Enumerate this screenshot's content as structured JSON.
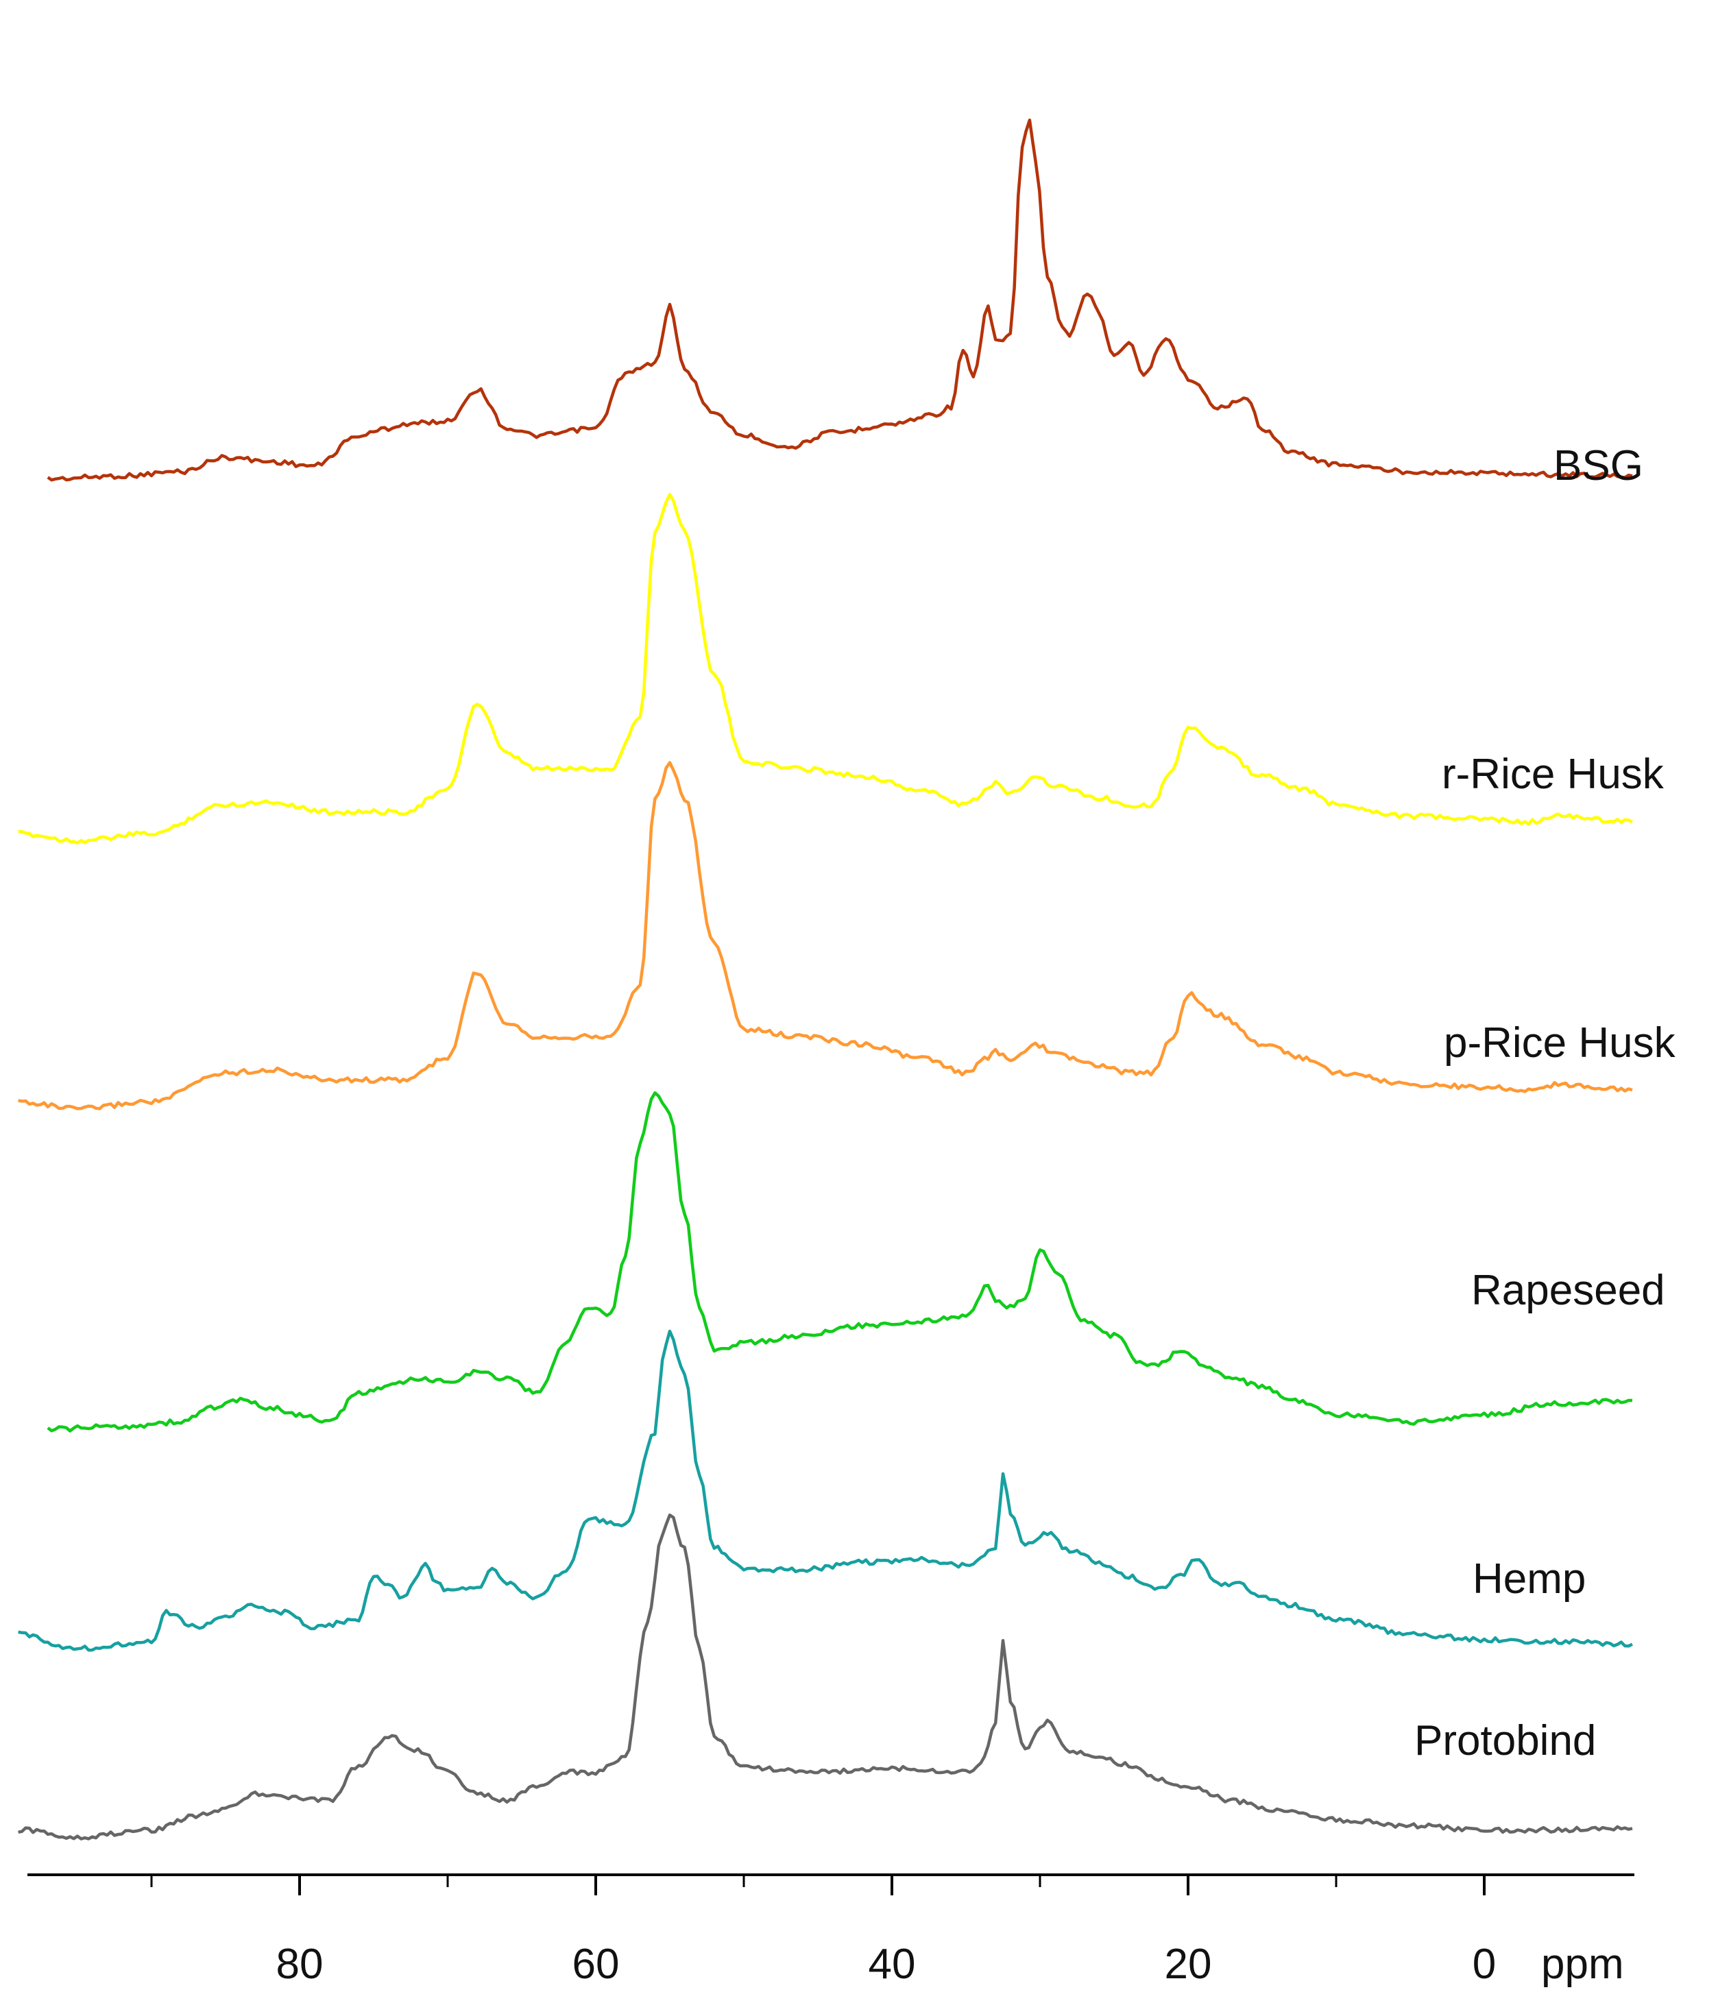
{
  "chart_data": {
    "type": "line",
    "title": "",
    "xlabel": "ppm",
    "ylabel": "",
    "x_reversed": true,
    "xlim": [
      99,
      -10
    ],
    "x_ticks": [
      80,
      60,
      40,
      20,
      0
    ],
    "x_tick_labels": [
      "80",
      "60",
      "40",
      "20",
      "0"
    ],
    "minor_ticks": [
      90,
      70,
      50,
      30,
      10
    ],
    "grid": false,
    "legend": "series labels placed at the right end of each stacked trace",
    "series": [
      {
        "name": "BSG",
        "color": "#b5330a",
        "baseline": 0.35,
        "x": [
          97,
          92,
          88,
          85,
          82,
          79,
          76,
          74,
          73,
          70,
          68,
          66,
          64,
          60,
          58,
          56,
          55,
          54,
          52,
          50,
          47,
          44,
          40,
          37,
          36,
          35.2,
          34.5,
          33.5,
          33,
          32,
          31.2,
          30.7,
          30.3,
          29.5,
          28.5,
          28,
          26.8,
          26,
          25,
          24,
          23,
          21.5,
          20,
          18,
          16,
          15,
          13,
          10,
          5,
          0,
          -5,
          -10
        ],
        "y": [
          0.0,
          0.02,
          0.05,
          0.15,
          0.12,
          0.09,
          0.3,
          0.35,
          0.38,
          0.4,
          0.62,
          0.35,
          0.3,
          0.35,
          0.73,
          0.8,
          1.2,
          0.75,
          0.45,
          0.3,
          0.22,
          0.32,
          0.38,
          0.45,
          0.5,
          0.9,
          0.7,
          1.2,
          0.95,
          1.0,
          2.3,
          2.5,
          2.2,
          1.4,
          1.05,
          1.0,
          1.3,
          1.15,
          0.85,
          0.95,
          0.72,
          0.98,
          0.7,
          0.5,
          0.55,
          0.35,
          0.18,
          0.1,
          0.05,
          0.04,
          0.03,
          0.02
        ]
      },
      {
        "name": "r-Rice Husk",
        "color": "#ffff00",
        "baseline": 0.0,
        "x": [
          99,
          95,
          90,
          85,
          82,
          78,
          73,
          70,
          68,
          66,
          64,
          61,
          59,
          57,
          56,
          55,
          54,
          52,
          50,
          46,
          42,
          38,
          35,
          33.5,
          33,
          32,
          30.3,
          29,
          26,
          24,
          22.5,
          21,
          20,
          18,
          15,
          12,
          10,
          5,
          0,
          -3,
          -5,
          -10
        ],
        "y": [
          0.1,
          0.05,
          0.1,
          0.3,
          0.32,
          0.25,
          0.25,
          0.4,
          1.0,
          0.65,
          0.55,
          0.55,
          0.55,
          0.9,
          2.2,
          2.45,
          2.2,
          1.2,
          0.6,
          0.55,
          0.5,
          0.4,
          0.3,
          0.4,
          0.45,
          0.38,
          0.5,
          0.43,
          0.35,
          0.3,
          0.3,
          0.55,
          0.85,
          0.7,
          0.5,
          0.4,
          0.3,
          0.22,
          0.2,
          0.18,
          0.22,
          0.18
        ]
      },
      {
        "name": "p-Rice Husk",
        "color": "#ff9933",
        "baseline": 0.0,
        "x": [
          99,
          95,
          90,
          85,
          82,
          78,
          73,
          70,
          68,
          66,
          64,
          61,
          59,
          57,
          56,
          55,
          54,
          52,
          50,
          46,
          42,
          38,
          35,
          33.5,
          33,
          32,
          30.3,
          29,
          26,
          24,
          22.5,
          21,
          20,
          18,
          15,
          12,
          10,
          5,
          0,
          -3,
          -5,
          -10
        ],
        "y": [
          0.1,
          0.05,
          0.1,
          0.3,
          0.32,
          0.25,
          0.25,
          0.4,
          1.0,
          0.65,
          0.55,
          0.55,
          0.55,
          0.9,
          2.2,
          2.45,
          2.2,
          1.2,
          0.6,
          0.55,
          0.5,
          0.4,
          0.3,
          0.4,
          0.45,
          0.38,
          0.5,
          0.43,
          0.35,
          0.3,
          0.3,
          0.55,
          0.85,
          0.7,
          0.5,
          0.4,
          0.3,
          0.22,
          0.2,
          0.18,
          0.22,
          0.18
        ]
      },
      {
        "name": "Rapeseed",
        "color": "#11cc1a",
        "baseline": 0.0,
        "x": [
          97,
          92,
          88,
          86,
          84,
          82,
          80,
          78,
          76,
          74,
          72,
          70,
          68,
          66,
          64,
          62,
          60.5,
          59,
          58,
          57,
          56,
          55,
          54,
          53,
          52,
          50,
          46,
          42,
          38,
          35,
          33.5,
          33,
          32,
          31,
          30,
          29,
          27,
          25,
          23,
          22,
          20.5,
          19,
          17,
          15,
          13,
          10,
          5,
          0,
          -5,
          -10
        ],
        "y": [
          0.0,
          0.02,
          0.05,
          0.15,
          0.2,
          0.15,
          0.1,
          0.05,
          0.25,
          0.3,
          0.35,
          0.33,
          0.4,
          0.35,
          0.25,
          0.6,
          0.85,
          0.8,
          1.2,
          2.0,
          2.35,
          2.2,
          1.5,
          0.85,
          0.55,
          0.6,
          0.65,
          0.72,
          0.75,
          0.78,
          1.0,
          0.9,
          0.85,
          0.9,
          1.25,
          1.1,
          0.75,
          0.65,
          0.45,
          0.45,
          0.55,
          0.45,
          0.35,
          0.3,
          0.2,
          0.1,
          0.05,
          0.1,
          0.18,
          0.2
        ]
      },
      {
        "name": "Hemp",
        "color": "#17a0a0",
        "baseline": 0.0,
        "x": [
          99,
          95,
          90,
          89,
          87,
          85,
          83,
          81,
          79,
          76,
          75,
          74,
          73,
          72,
          71.5,
          71,
          70,
          68,
          67,
          66,
          64,
          62,
          60.5,
          59,
          58,
          56,
          55.5,
          55,
          54,
          53,
          52,
          50,
          46,
          42,
          38,
          35,
          33,
          32.5,
          32,
          31,
          29.5,
          28,
          26,
          24,
          22,
          20.5,
          19.5,
          18,
          16.5,
          15,
          13,
          10,
          5,
          0,
          -5,
          -10
        ],
        "y": [
          0.1,
          0.0,
          0.05,
          0.25,
          0.15,
          0.22,
          0.3,
          0.25,
          0.15,
          0.2,
          0.5,
          0.45,
          0.35,
          0.5,
          0.6,
          0.48,
          0.4,
          0.42,
          0.55,
          0.45,
          0.35,
          0.55,
          0.9,
          0.88,
          0.85,
          1.5,
          2.0,
          2.2,
          1.9,
          1.2,
          0.7,
          0.55,
          0.55,
          0.6,
          0.62,
          0.58,
          0.7,
          1.2,
          0.95,
          0.72,
          0.8,
          0.68,
          0.6,
          0.5,
          0.42,
          0.5,
          0.62,
          0.45,
          0.45,
          0.35,
          0.3,
          0.2,
          0.1,
          0.06,
          0.05,
          0.03
        ]
      },
      {
        "name": "Protobind",
        "color": "#666666",
        "baseline": 0.0,
        "x": [
          99,
          95,
          90,
          87,
          85,
          83,
          81,
          78,
          76,
          74,
          72,
          70,
          68,
          66,
          64,
          62,
          60,
          58,
          56.5,
          55.5,
          55,
          54,
          53,
          52,
          50,
          45,
          40,
          35,
          34,
          33,
          32.5,
          32,
          31,
          30,
          29.5,
          28,
          26,
          24,
          22,
          20,
          17,
          14,
          10,
          5,
          0,
          -5,
          -10
        ],
        "y": [
          0.05,
          0.0,
          0.05,
          0.15,
          0.2,
          0.3,
          0.28,
          0.25,
          0.5,
          0.7,
          0.6,
          0.45,
          0.3,
          0.25,
          0.35,
          0.45,
          0.45,
          0.55,
          1.5,
          2.1,
          2.25,
          2.0,
          1.3,
          0.7,
          0.48,
          0.45,
          0.48,
          0.45,
          0.5,
          0.8,
          1.35,
          0.95,
          0.6,
          0.75,
          0.8,
          0.6,
          0.55,
          0.5,
          0.4,
          0.35,
          0.25,
          0.18,
          0.12,
          0.08,
          0.05,
          0.05,
          0.06
        ]
      }
    ]
  }
}
